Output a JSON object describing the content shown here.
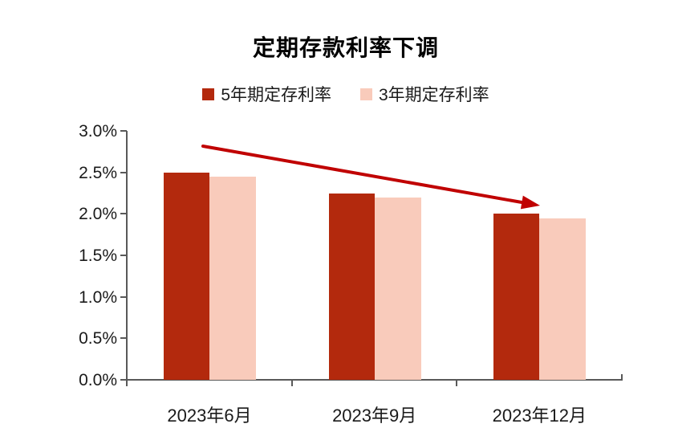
{
  "title": "定期存款利率下调",
  "legend": {
    "items": [
      {
        "label": "5年期定存利率",
        "color": "#B3290D"
      },
      {
        "label": "3年期定存利率",
        "color": "#F9CBBB"
      }
    ]
  },
  "chart_data": {
    "type": "bar",
    "title": "定期存款利率下调",
    "categories": [
      "2023年6月",
      "2023年9月",
      "2023年12月"
    ],
    "series": [
      {
        "name": "5年期定存利率",
        "color": "#B3290D",
        "values": [
          2.5,
          2.25,
          2.0
        ]
      },
      {
        "name": "3年期定存利率",
        "color": "#F9CBBB",
        "values": [
          2.45,
          2.2,
          1.95
        ]
      }
    ],
    "y_axis": {
      "min": 0.0,
      "max": 3.0,
      "step": 0.5,
      "tick_labels": [
        "0.0%",
        "0.5%",
        "1.0%",
        "1.5%",
        "2.0%",
        "2.5%",
        "3.0%"
      ],
      "unit": "%"
    },
    "xlabel": "",
    "ylabel": "",
    "grid": false,
    "legend_position": "top",
    "annotation": {
      "type": "downward-trend-arrow",
      "color": "#C00000",
      "description": "red arrow sloping down from above the 2023年6月 bars to above the 2023年12月 bars"
    }
  },
  "colors": {
    "axis": "#595959",
    "text": "#1A1A1A",
    "arrow": "#C00000",
    "background": "#FFFFFF"
  }
}
